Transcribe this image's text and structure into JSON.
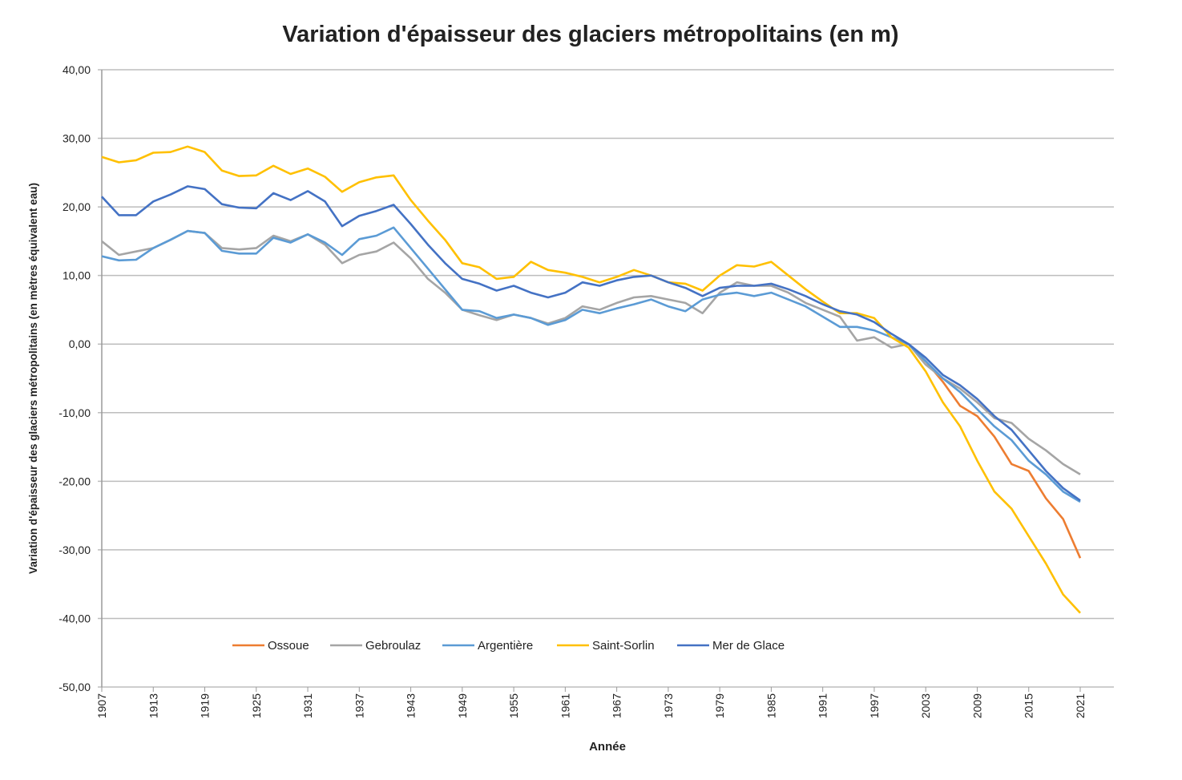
{
  "chart_data": {
    "type": "line",
    "title": "Variation d'épaisseur des glaciers métropolitains (en m)",
    "xlabel": "Année",
    "ylabel": "Variation d'épaisseur des glaciers  métropolitains (en mètres équivalent eau)",
    "xlim": [
      1907,
      2025
    ],
    "ylim": [
      -50,
      40
    ],
    "yticks": [
      "40,00",
      "30,00",
      "20,00",
      "10,00",
      "0,00",
      "-10,00",
      "-20,00",
      "-30,00",
      "-40,00",
      "-50,00"
    ],
    "ytick_values": [
      40,
      30,
      20,
      10,
      0,
      -10,
      -20,
      -30,
      -40,
      -50
    ],
    "xticks": [
      "1907",
      "1913",
      "1919",
      "1925",
      "1931",
      "1937",
      "1943",
      "1949",
      "1955",
      "1961",
      "1967",
      "1973",
      "1979",
      "1985",
      "1991",
      "1997",
      "2003",
      "2009",
      "2015",
      "2021"
    ],
    "grid": true,
    "legend_position": "bottom-inside",
    "x": [
      1907,
      1909,
      1911,
      1913,
      1915,
      1917,
      1919,
      1921,
      1923,
      1925,
      1927,
      1929,
      1931,
      1933,
      1935,
      1937,
      1939,
      1941,
      1943,
      1945,
      1947,
      1949,
      1951,
      1953,
      1955,
      1957,
      1959,
      1961,
      1963,
      1965,
      1967,
      1969,
      1971,
      1973,
      1975,
      1977,
      1979,
      1981,
      1983,
      1985,
      1987,
      1989,
      1991,
      1993,
      1995,
      1997,
      1999,
      2001,
      2003,
      2005,
      2007,
      2009,
      2011,
      2013,
      2015,
      2017,
      2019,
      2021
    ],
    "series": [
      {
        "name": "Ossoue",
        "color": "#ED7D31",
        "values": [
          null,
          null,
          null,
          null,
          null,
          null,
          null,
          null,
          null,
          null,
          null,
          null,
          null,
          null,
          null,
          null,
          null,
          null,
          null,
          null,
          null,
          null,
          null,
          null,
          null,
          null,
          null,
          null,
          null,
          null,
          null,
          null,
          null,
          null,
          null,
          null,
          null,
          null,
          null,
          null,
          null,
          null,
          null,
          null,
          null,
          null,
          null,
          0,
          -2.5,
          -5.5,
          -9.0,
          -10.5,
          -13.5,
          -17.5,
          -18.5,
          -22.5,
          -25.5,
          -31.2
        ]
      },
      {
        "name": "Gebroulaz",
        "color": "#A5A5A5",
        "values": [
          15.0,
          13.0,
          13.5,
          14.0,
          15.2,
          16.5,
          16.2,
          14.0,
          13.8,
          14.0,
          15.8,
          15.0,
          16.0,
          14.5,
          11.8,
          13.0,
          13.5,
          14.8,
          12.5,
          9.5,
          7.5,
          5.0,
          4.2,
          3.5,
          4.3,
          3.8,
          3.0,
          3.8,
          5.5,
          5.0,
          6.0,
          6.8,
          7.0,
          6.5,
          6.0,
          4.5,
          7.5,
          9.0,
          8.5,
          8.5,
          7.5,
          6.0,
          5.0,
          4.0,
          0.5,
          1.0,
          -0.5,
          0,
          -3.0,
          -5.0,
          -6.5,
          -8.5,
          -10.8,
          -11.5,
          -13.8,
          -15.5,
          -17.5,
          -19.0
        ]
      },
      {
        "name": "Argentière",
        "color": "#5B9BD5",
        "values": [
          12.8,
          12.2,
          12.3,
          14.0,
          15.2,
          16.5,
          16.2,
          13.6,
          13.2,
          13.2,
          15.5,
          14.8,
          16.0,
          14.8,
          13.0,
          15.3,
          15.8,
          17.0,
          14.0,
          11.0,
          8.0,
          5.0,
          4.8,
          3.8,
          4.3,
          3.8,
          2.8,
          3.5,
          5.0,
          4.5,
          5.2,
          5.8,
          6.5,
          5.5,
          4.8,
          6.5,
          7.2,
          7.5,
          7.0,
          7.5,
          6.5,
          5.5,
          4.0,
          2.5,
          2.5,
          2.0,
          1.0,
          0,
          -2.5,
          -5.0,
          -7.0,
          -9.5,
          -12.0,
          -14.0,
          -17.0,
          -19.0,
          -21.5,
          -23.0
        ]
      },
      {
        "name": "Saint-Sorlin",
        "color": "#FFC000",
        "values": [
          27.3,
          26.5,
          26.8,
          27.9,
          28.0,
          28.8,
          28.0,
          25.3,
          24.5,
          24.6,
          26.0,
          24.8,
          25.6,
          24.4,
          22.2,
          23.6,
          24.3,
          24.6,
          21.0,
          18.0,
          15.2,
          11.8,
          11.2,
          9.5,
          9.8,
          12.0,
          10.8,
          10.4,
          9.8,
          9.0,
          9.8,
          10.8,
          10.0,
          9.0,
          8.8,
          7.8,
          10.0,
          11.5,
          11.3,
          12.0,
          10.0,
          8.0,
          6.2,
          4.5,
          4.5,
          3.8,
          1.0,
          -0.5,
          -4.0,
          -8.5,
          -12.0,
          -17.0,
          -21.5,
          -24.0,
          -28.0,
          -32.0,
          -36.5,
          -39.2
        ]
      },
      {
        "name": "Mer de Glace",
        "color": "#4472C4",
        "values": [
          21.5,
          18.8,
          18.8,
          20.8,
          21.8,
          23.0,
          22.6,
          20.4,
          19.9,
          19.8,
          22.0,
          21.0,
          22.3,
          20.8,
          17.2,
          18.7,
          19.4,
          20.3,
          17.5,
          14.5,
          11.8,
          9.5,
          8.8,
          7.8,
          8.5,
          7.5,
          6.8,
          7.5,
          9.0,
          8.5,
          9.3,
          9.8,
          10.0,
          9.0,
          8.2,
          7.0,
          8.2,
          8.5,
          8.5,
          8.8,
          8.0,
          7.0,
          5.8,
          4.8,
          4.3,
          3.2,
          1.5,
          0,
          -2.0,
          -4.5,
          -6.0,
          -8.0,
          -10.5,
          -12.5,
          -15.5,
          -18.5,
          -21.0,
          -22.8
        ]
      }
    ]
  }
}
